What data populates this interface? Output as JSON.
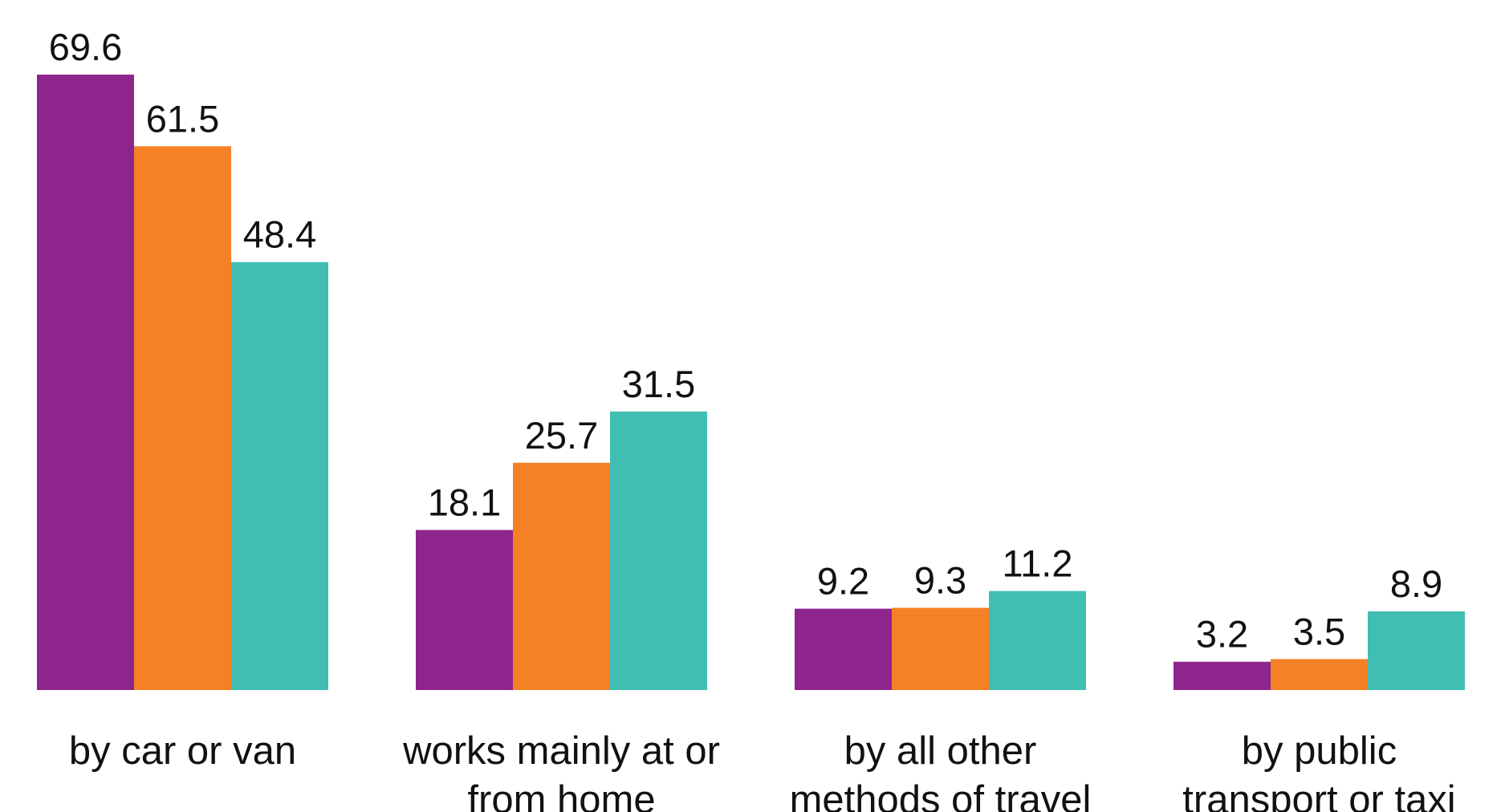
{
  "chart_data": {
    "type": "bar",
    "categories": [
      [
        "by car or van"
      ],
      [
        "works mainly at or",
        "from home"
      ],
      [
        "by all other",
        "methods of travel"
      ],
      [
        "by public",
        "transport or taxi"
      ]
    ],
    "series": [
      {
        "values": [
          69.6,
          18.1,
          9.2,
          3.2
        ],
        "color": "#8e258d"
      },
      {
        "values": [
          61.5,
          25.7,
          9.3,
          3.5
        ],
        "color": "#f58025"
      },
      {
        "values": [
          48.4,
          31.5,
          11.2,
          8.9
        ],
        "color": "#41beb2"
      }
    ],
    "value_labels": true,
    "grid": false,
    "axes_visible": false,
    "legend": "none",
    "ylim": [
      0,
      69.6
    ]
  }
}
